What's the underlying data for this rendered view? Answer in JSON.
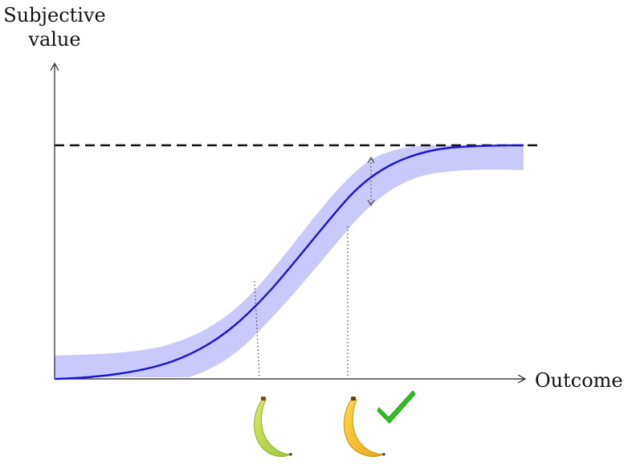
{
  "diagram": {
    "y_axis_label_line1": "Subjective",
    "y_axis_label_line2": "value",
    "x_axis_label": "Outcome"
  },
  "colors": {
    "curve": "#1a12d4",
    "band": "#c9c9fb",
    "axis": "#222222",
    "ceiling_line": "#111111",
    "banana_unripe": "#b8d94a",
    "banana_ripe": "#f5c02a",
    "checkmark": "#2ec21e"
  },
  "icons": {
    "unripe": "banana-unripe-icon",
    "ripe": "banana-ripe-icon",
    "check": "checkmark-icon"
  }
}
